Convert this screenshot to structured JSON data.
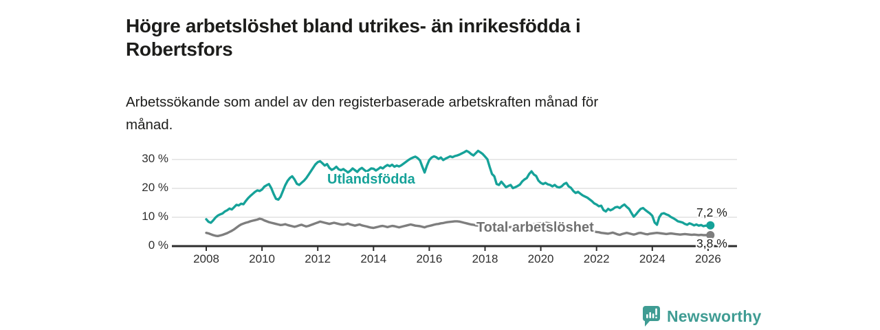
{
  "header": {
    "title": "Högre arbetslöshet bland utrikes- än inrikesfödda i\nRobertsfors",
    "subtitle": "Arbetssökande som andel av den registerbaserade arbetskraften månad för\nmånad."
  },
  "chart_data": {
    "type": "line",
    "title": "Högre arbetslöshet bland utrikes- än inrikesfödda i Robertsfors",
    "subtitle": "Arbetssökande som andel av den registerbaserade arbetskraften månad för månad.",
    "x_unit": "year-month",
    "x_start_year": 2008,
    "x_step_months": 1,
    "x_ticks": [
      2008,
      2010,
      2012,
      2014,
      2016,
      2018,
      2020,
      2022,
      2024,
      2026
    ],
    "y_ticks": [
      0,
      10,
      20,
      30
    ],
    "y_tick_suffix": " %",
    "ylim": [
      0,
      34
    ],
    "grid": "horizontal",
    "legend_position": "inline-labels",
    "series": [
      {
        "name": "Utlandsfödda",
        "color": "#16a299",
        "end_label": "7,2 %",
        "end_value": 7.2,
        "values": [
          9.3,
          8.4,
          8.1,
          8.9,
          9.9,
          10.6,
          11.0,
          11.3,
          12.0,
          12.4,
          13.0,
          12.7,
          13.5,
          14.3,
          14.1,
          14.7,
          14.5,
          15.6,
          16.6,
          17.4,
          18.1,
          18.8,
          19.3,
          19.1,
          19.6,
          20.6,
          21.1,
          21.5,
          20.1,
          18.1,
          16.4,
          16.1,
          17.1,
          19.1,
          21.1,
          22.6,
          23.6,
          24.2,
          23.1,
          21.6,
          21.2,
          21.9,
          22.6,
          23.5,
          24.7,
          25.9,
          27.1,
          28.3,
          29.1,
          29.4,
          28.7,
          27.9,
          28.4,
          27.1,
          26.4,
          26.8,
          27.5,
          26.6,
          26.3,
          26.7,
          26.1,
          25.5,
          26.1,
          26.9,
          26.3,
          25.7,
          26.6,
          27.1,
          26.4,
          25.8,
          26.3,
          26.9,
          26.8,
          26.2,
          26.7,
          27.3,
          26.9,
          27.6,
          28.1,
          27.7,
          28.2,
          27.5,
          27.9,
          27.6,
          28.0,
          28.6,
          29.2,
          29.8,
          30.3,
          30.7,
          31.0,
          30.5,
          29.7,
          27.5,
          25.5,
          27.9,
          29.8,
          30.7,
          31.1,
          30.8,
          30.2,
          30.7,
          29.8,
          30.3,
          30.7,
          31.1,
          30.8,
          31.2,
          31.4,
          31.7,
          32.1,
          32.5,
          33.0,
          32.6,
          31.9,
          31.4,
          32.2,
          33.0,
          32.5,
          31.9,
          31.0,
          30.1,
          27.4,
          25.0,
          24.2,
          21.5,
          21.2,
          22.3,
          21.4,
          20.4,
          20.8,
          21.2,
          20.1,
          20.4,
          20.8,
          21.3,
          22.4,
          23.1,
          23.6,
          25.0,
          25.9,
          24.8,
          24.3,
          22.7,
          21.9,
          21.5,
          21.9,
          21.4,
          21.2,
          20.7,
          21.2,
          20.5,
          20.3,
          20.7,
          21.5,
          21.9,
          20.7,
          20.2,
          19.1,
          18.4,
          18.8,
          18.2,
          17.6,
          17.2,
          16.8,
          16.2,
          15.6,
          14.8,
          14.4,
          13.8,
          14.0,
          12.5,
          12.0,
          12.9,
          12.4,
          12.8,
          13.4,
          13.6,
          13.2,
          13.9,
          14.4,
          13.6,
          12.9,
          11.5,
          10.2,
          11.0,
          12.0,
          12.9,
          13.2,
          12.5,
          11.9,
          11.3,
          10.5,
          8.2,
          7.4,
          10.0,
          11.2,
          11.4,
          11.0,
          10.7,
          10.1,
          9.7,
          9.2,
          8.6,
          8.4,
          8.2,
          7.7,
          7.4,
          7.9,
          7.6,
          7.2,
          7.5,
          7.1,
          7.3,
          6.9,
          7.1,
          7.0,
          7.2
        ]
      },
      {
        "name": "Total arbetslöshet",
        "color": "#7e7e7e",
        "end_label": "3,8 %",
        "end_value": 3.8,
        "values": [
          4.6,
          4.4,
          4.1,
          3.8,
          3.6,
          3.5,
          3.7,
          3.9,
          4.2,
          4.5,
          4.9,
          5.3,
          5.8,
          6.4,
          7.0,
          7.5,
          7.8,
          8.1,
          8.3,
          8.6,
          8.8,
          9.0,
          9.2,
          9.5,
          9.3,
          8.9,
          8.6,
          8.3,
          8.1,
          7.9,
          7.7,
          7.5,
          7.3,
          7.4,
          7.6,
          7.3,
          7.1,
          6.9,
          6.7,
          6.9,
          7.2,
          7.4,
          7.1,
          6.8,
          7.0,
          7.3,
          7.6,
          7.9,
          8.2,
          8.5,
          8.3,
          8.1,
          7.9,
          7.7,
          7.9,
          8.1,
          7.9,
          7.7,
          7.5,
          7.4,
          7.6,
          7.8,
          7.5,
          7.3,
          7.1,
          7.3,
          7.5,
          7.2,
          7.0,
          6.8,
          6.6,
          6.4,
          6.3,
          6.5,
          6.7,
          6.9,
          7.0,
          6.8,
          6.6,
          6.8,
          7.0,
          6.9,
          6.7,
          6.5,
          6.7,
          6.9,
          7.1,
          7.3,
          7.5,
          7.3,
          7.1,
          7.0,
          6.9,
          6.7,
          6.5,
          6.8,
          7.0,
          7.2,
          7.4,
          7.6,
          7.7,
          7.9,
          8.0,
          8.2,
          8.3,
          8.4,
          8.5,
          8.6,
          8.6,
          8.5,
          8.3,
          8.1,
          7.9,
          7.7,
          7.5,
          7.4,
          7.2,
          7.1,
          7.0,
          7.0,
          7.0,
          6.8,
          6.6,
          6.5,
          6.4,
          6.3,
          6.2,
          6.2,
          6.3,
          6.4,
          6.5,
          6.6,
          6.7,
          6.8,
          6.9,
          7.0,
          7.1,
          7.2,
          7.3,
          7.4,
          7.5,
          7.6,
          7.7,
          7.8,
          7.9,
          8.0,
          8.1,
          8.0,
          7.8,
          7.6,
          7.4,
          7.2,
          7.0,
          6.8,
          6.6,
          6.4,
          6.2,
          6.0,
          5.9,
          5.8,
          5.7,
          5.6,
          5.5,
          5.4,
          5.3,
          5.2,
          5.1,
          5.0,
          4.9,
          4.8,
          4.6,
          4.5,
          4.4,
          4.3,
          4.5,
          4.7,
          4.4,
          4.1,
          3.9,
          4.2,
          4.4,
          4.6,
          4.4,
          4.2,
          4.0,
          4.2,
          4.5,
          4.6,
          4.4,
          4.2,
          4.1,
          4.3,
          4.4,
          4.5,
          4.6,
          4.5,
          4.4,
          4.3,
          4.2,
          4.3,
          4.4,
          4.3,
          4.2,
          4.1,
          4.0,
          4.1,
          4.2,
          4.1,
          4.0,
          3.9,
          4.0,
          3.9,
          3.8,
          3.9,
          3.8,
          3.8,
          3.8,
          3.8
        ]
      }
    ],
    "axis_color": "#2d2d2d",
    "grid_color": "#dadada"
  },
  "footer": {
    "brand": "Newsworthy",
    "brand_color": "#3f9c93",
    "logo_icon": "bar-chart-speech-bubble-icon"
  }
}
